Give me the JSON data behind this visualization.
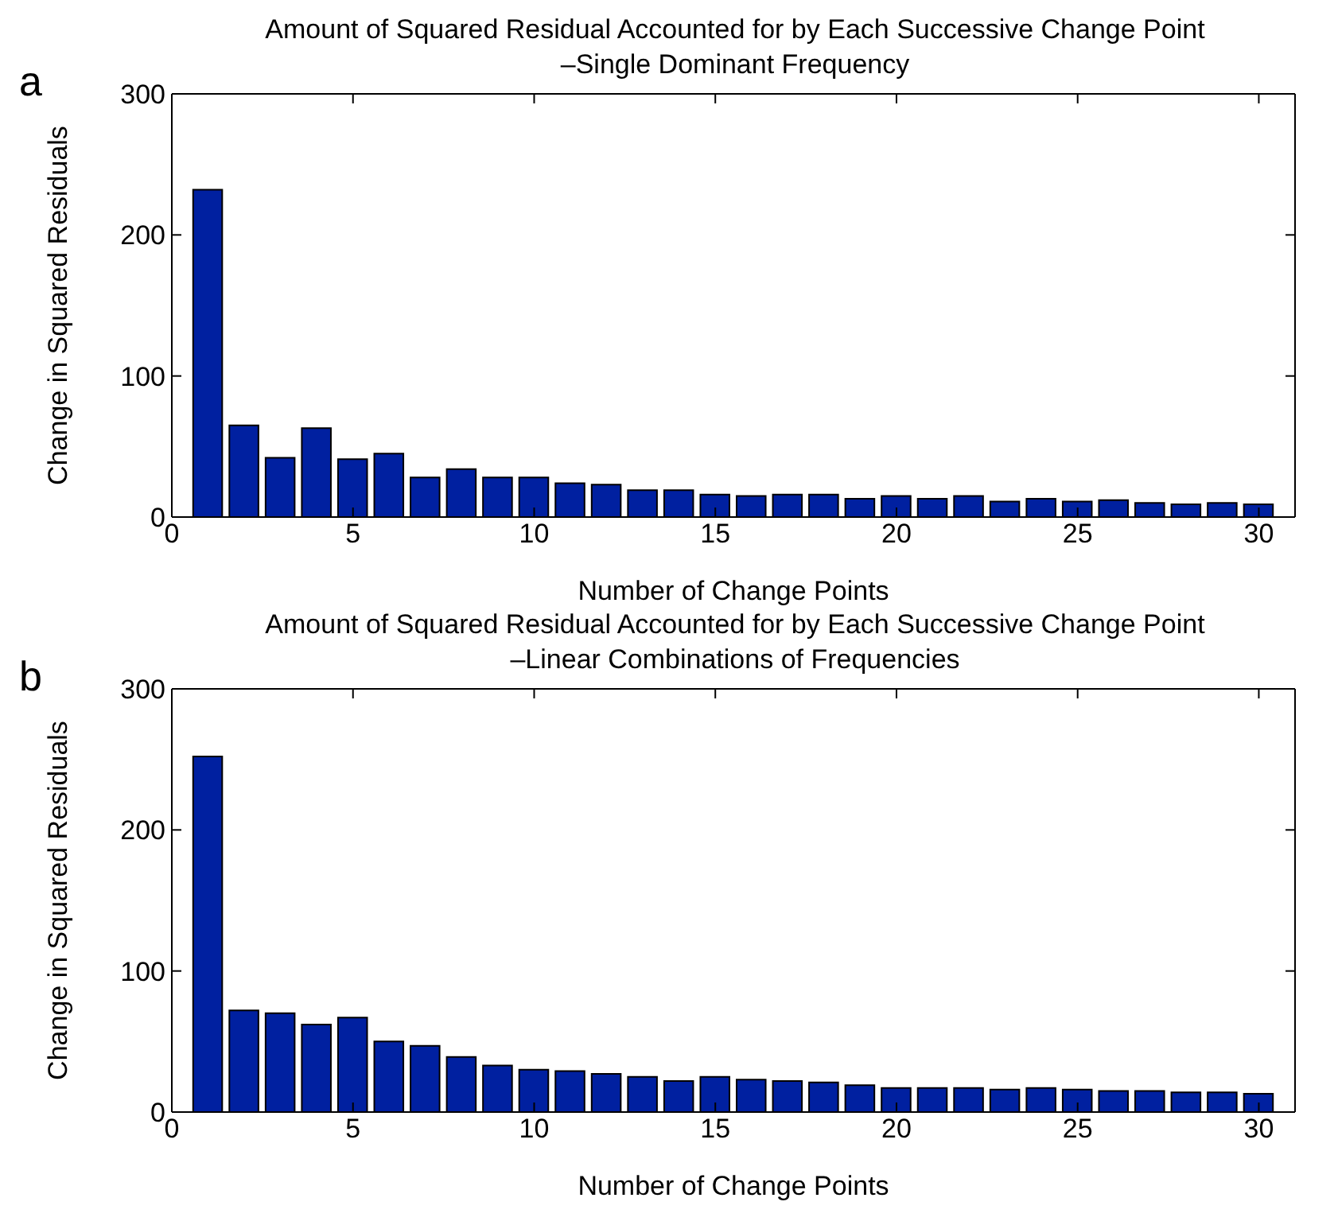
{
  "chart_data": [
    {
      "type": "bar",
      "title": "Amount of Squared Residual Accounted for by Each Successive Change Point",
      "subtitle": "–Single Dominant Frequency",
      "annotations": [
        "a"
      ],
      "xlabel": "Number of Change Points",
      "ylabel": "Change in Squared Residuals",
      "x": [
        1,
        2,
        3,
        4,
        5,
        6,
        7,
        8,
        9,
        10,
        11,
        12,
        13,
        14,
        15,
        16,
        17,
        18,
        19,
        20,
        21,
        22,
        23,
        24,
        25,
        26,
        27,
        28,
        29,
        30
      ],
      "series": [
        {
          "color": "#0020a0",
          "values": [
            232,
            65,
            42,
            63,
            41,
            45,
            28,
            34,
            28,
            28,
            24,
            23,
            19,
            19,
            16,
            15,
            16,
            16,
            13,
            15,
            13,
            15,
            11,
            13,
            11,
            12,
            10,
            9,
            10,
            9
          ]
        }
      ],
      "xlim": [
        0,
        31
      ],
      "xticks": [
        0,
        5,
        10,
        15,
        20,
        25,
        30
      ],
      "ylim": [
        0,
        300
      ],
      "yticks": [
        0,
        100,
        200,
        300
      ],
      "grid": false,
      "legend": false
    },
    {
      "type": "bar",
      "title": "Amount of Squared Residual Accounted for by Each Successive Change Point",
      "subtitle": "–Linear Combinations of Frequencies",
      "annotations": [
        "b"
      ],
      "xlabel": "Number of Change Points",
      "ylabel": "Change in Squared Residuals",
      "x": [
        1,
        2,
        3,
        4,
        5,
        6,
        7,
        8,
        9,
        10,
        11,
        12,
        13,
        14,
        15,
        16,
        17,
        18,
        19,
        20,
        21,
        22,
        23,
        24,
        25,
        26,
        27,
        28,
        29,
        30
      ],
      "series": [
        {
          "color": "#0020a0",
          "values": [
            252,
            72,
            70,
            62,
            67,
            50,
            47,
            39,
            33,
            30,
            29,
            27,
            25,
            22,
            25,
            23,
            22,
            21,
            19,
            17,
            17,
            17,
            16,
            17,
            16,
            15,
            15,
            14,
            14,
            13
          ]
        }
      ],
      "xlim": [
        0,
        31
      ],
      "xticks": [
        0,
        5,
        10,
        15,
        20,
        25,
        30
      ],
      "ylim": [
        0,
        300
      ],
      "yticks": [
        0,
        100,
        200,
        300
      ],
      "grid": false,
      "legend": false
    }
  ]
}
